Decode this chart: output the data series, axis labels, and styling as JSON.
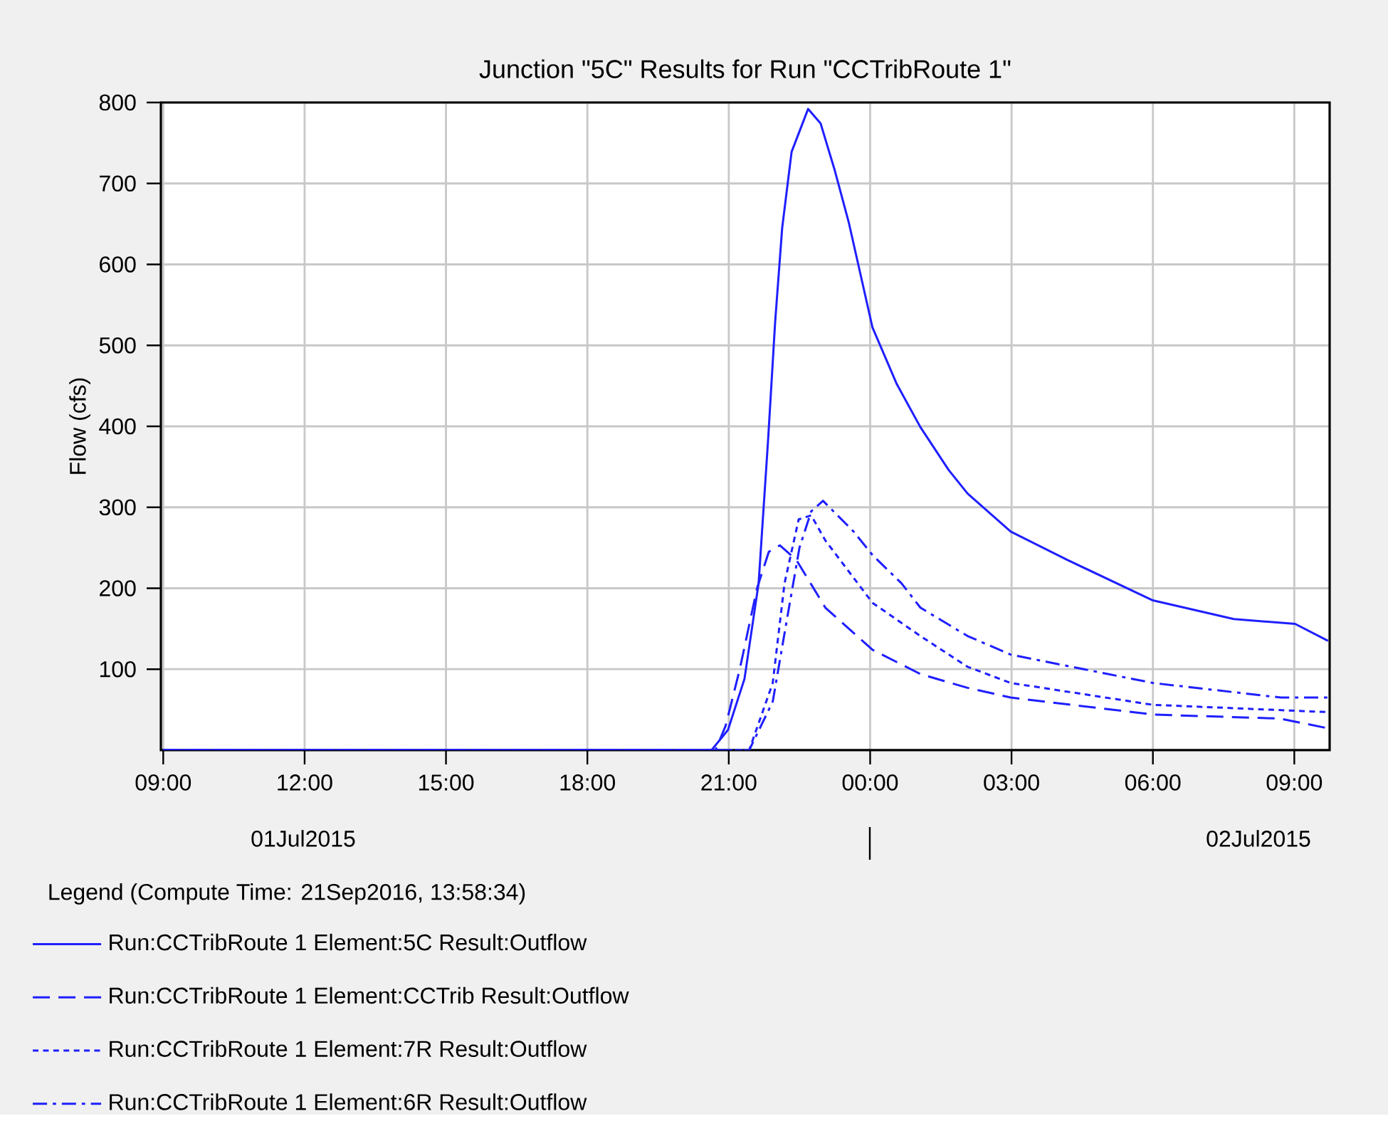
{
  "chart_data": {
    "type": "line",
    "title": "Junction \"5C\" Results for Run \"CCTribRoute 1\"",
    "ylabel": "Flow (cfs)",
    "legend_title": "Legend (Compute Time: 21Sep2016, 13:58:34)",
    "annotations": [
      "01Jul2015",
      "02Jul2015"
    ],
    "xlim": [
      "2015-07-01T08:57",
      "2015-07-02T09:45"
    ],
    "ylim": [
      0,
      800
    ],
    "xticks": [
      {
        "value": "2015-07-01T09:00",
        "label": "09:00"
      },
      {
        "value": "2015-07-01T12:00",
        "label": "12:00"
      },
      {
        "value": "2015-07-01T15:00",
        "label": "15:00"
      },
      {
        "value": "2015-07-01T18:00",
        "label": "18:00"
      },
      {
        "value": "2015-07-01T21:00",
        "label": "21:00"
      },
      {
        "value": "2015-07-02T00:00",
        "label": "00:00"
      },
      {
        "value": "2015-07-02T03:00",
        "label": "03:00"
      },
      {
        "value": "2015-07-02T06:00",
        "label": "06:00"
      },
      {
        "value": "2015-07-02T09:00",
        "label": "09:00"
      }
    ],
    "yticks": [
      100,
      200,
      300,
      400,
      500,
      600,
      700,
      800
    ],
    "grid": true,
    "legend": "bottom",
    "series": [
      {
        "name": "Run:CCTribRoute 1 Element:5C Result:Outflow",
        "color": "#1f1fff",
        "line_style": "solid",
        "x": [
          "2015-07-01T09:00",
          "2015-07-01T20:38",
          "2015-07-01T20:59",
          "2015-07-01T21:20",
          "2015-07-01T21:38",
          "2015-07-01T21:50",
          "2015-07-01T21:59",
          "2015-07-01T22:08",
          "2015-07-01T22:20",
          "2015-07-01T22:41",
          "2015-07-01T22:57",
          "2015-07-01T23:15",
          "2015-07-01T23:33",
          "2015-07-02T00:03",
          "2015-07-02T00:34",
          "2015-07-02T01:04",
          "2015-07-02T01:40",
          "2015-07-02T02:04",
          "2015-07-02T02:59",
          "2015-07-02T04:11",
          "2015-07-02T06:00",
          "2015-07-02T07:43",
          "2015-07-02T09:01",
          "2015-07-02T09:43"
        ],
        "values": [
          0,
          0,
          25,
          88,
          206,
          382,
          528,
          645,
          739,
          792,
          774,
          716,
          651,
          522,
          452,
          399,
          346,
          317,
          270,
          235,
          185,
          162,
          156,
          135
        ]
      },
      {
        "name": "Run:CCTribRoute 1 Element:CCTrib Result:Outflow",
        "color": "#1f1fff",
        "line_style": "dashed",
        "x": [
          "2015-07-01T09:00",
          "2015-07-01T20:43",
          "2015-07-01T20:56",
          "2015-07-01T21:14",
          "2015-07-01T21:36",
          "2015-07-01T21:51",
          "2015-07-01T22:05",
          "2015-07-01T22:26",
          "2015-07-01T23:03",
          "2015-07-02T00:03",
          "2015-07-02T01:04",
          "2015-07-02T02:04",
          "2015-07-02T02:59",
          "2015-07-02T06:00",
          "2015-07-02T08:42",
          "2015-07-02T09:43"
        ],
        "values": [
          0,
          0,
          30,
          100,
          200,
          245,
          253,
          235,
          176,
          124,
          94,
          77,
          65,
          44,
          39,
          27
        ]
      },
      {
        "name": "Run:CCTribRoute 1 Element:7R Result:Outflow",
        "color": "#1f1fff",
        "line_style": "dotted",
        "x": [
          "2015-07-01T09:00",
          "2015-07-01T21:26",
          "2015-07-01T21:56",
          "2015-07-01T22:11",
          "2015-07-01T22:29",
          "2015-07-01T22:45",
          "2015-07-01T23:03",
          "2015-07-02T00:03",
          "2015-07-02T01:04",
          "2015-07-02T02:04",
          "2015-07-02T02:59",
          "2015-07-02T06:00",
          "2015-07-02T09:43"
        ],
        "values": [
          0,
          0,
          83,
          206,
          285,
          290,
          259,
          182,
          141,
          103,
          83,
          56,
          47
        ]
      },
      {
        "name": "Run:CCTribRoute 1 Element:6R Result:Outflow",
        "color": "#1f1fff",
        "line_style": "dashdot",
        "x": [
          "2015-07-01T09:00",
          "2015-07-01T21:26",
          "2015-07-01T21:56",
          "2015-07-01T22:12",
          "2015-07-01T22:30",
          "2015-07-01T22:45",
          "2015-07-01T23:00",
          "2015-07-01T23:39",
          "2015-07-02T00:03",
          "2015-07-02T00:40",
          "2015-07-02T01:04",
          "2015-07-02T02:04",
          "2015-07-02T02:59",
          "2015-07-02T06:00",
          "2015-07-02T08:43",
          "2015-07-02T09:43"
        ],
        "values": [
          0,
          0,
          60,
          150,
          250,
          295,
          308,
          270,
          241,
          206,
          176,
          141,
          118,
          83,
          65,
          65
        ]
      }
    ]
  }
}
